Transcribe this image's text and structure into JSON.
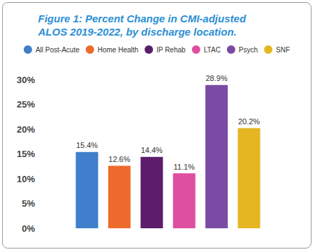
{
  "chart_data": {
    "type": "bar",
    "title": "Figure 1: Percent Change in CMI-adjusted ALOS 2019-2022, by discharge location.",
    "categories": [
      null
    ],
    "series": [
      {
        "name": "All Post-Acute",
        "color": "#3f7fcb",
        "values": [
          15.4
        ],
        "value_labels": [
          "15.4%"
        ]
      },
      {
        "name": "Home Health",
        "color": "#ee6a2c",
        "values": [
          12.6
        ],
        "value_labels": [
          "12.6%"
        ]
      },
      {
        "name": "IP Rehab",
        "color": "#5c1e6c",
        "values": [
          14.4
        ],
        "value_labels": [
          "14.4%"
        ]
      },
      {
        "name": "LTAC",
        "color": "#df4f9f",
        "values": [
          11.1
        ],
        "value_labels": [
          "11.1%"
        ]
      },
      {
        "name": "Psych",
        "color": "#7a4ba4",
        "values": [
          28.9
        ],
        "value_labels": [
          "28.9%"
        ]
      },
      {
        "name": "SNF",
        "color": "#e5b622",
        "values": [
          20.2
        ],
        "value_labels": [
          "20.2%"
        ]
      }
    ],
    "ylim": [
      0,
      30
    ],
    "yticks": [
      {
        "value": 0,
        "label": "0%"
      },
      {
        "value": 5,
        "label": "5%"
      },
      {
        "value": 10,
        "label": "10%"
      },
      {
        "value": 15,
        "label": "15%"
      },
      {
        "value": 20,
        "label": "20%"
      },
      {
        "value": 25,
        "label": "25%"
      },
      {
        "value": 30,
        "label": "30%"
      }
    ],
    "grid": false,
    "legend": "top",
    "data_labels": true,
    "tick_labels": "y"
  }
}
